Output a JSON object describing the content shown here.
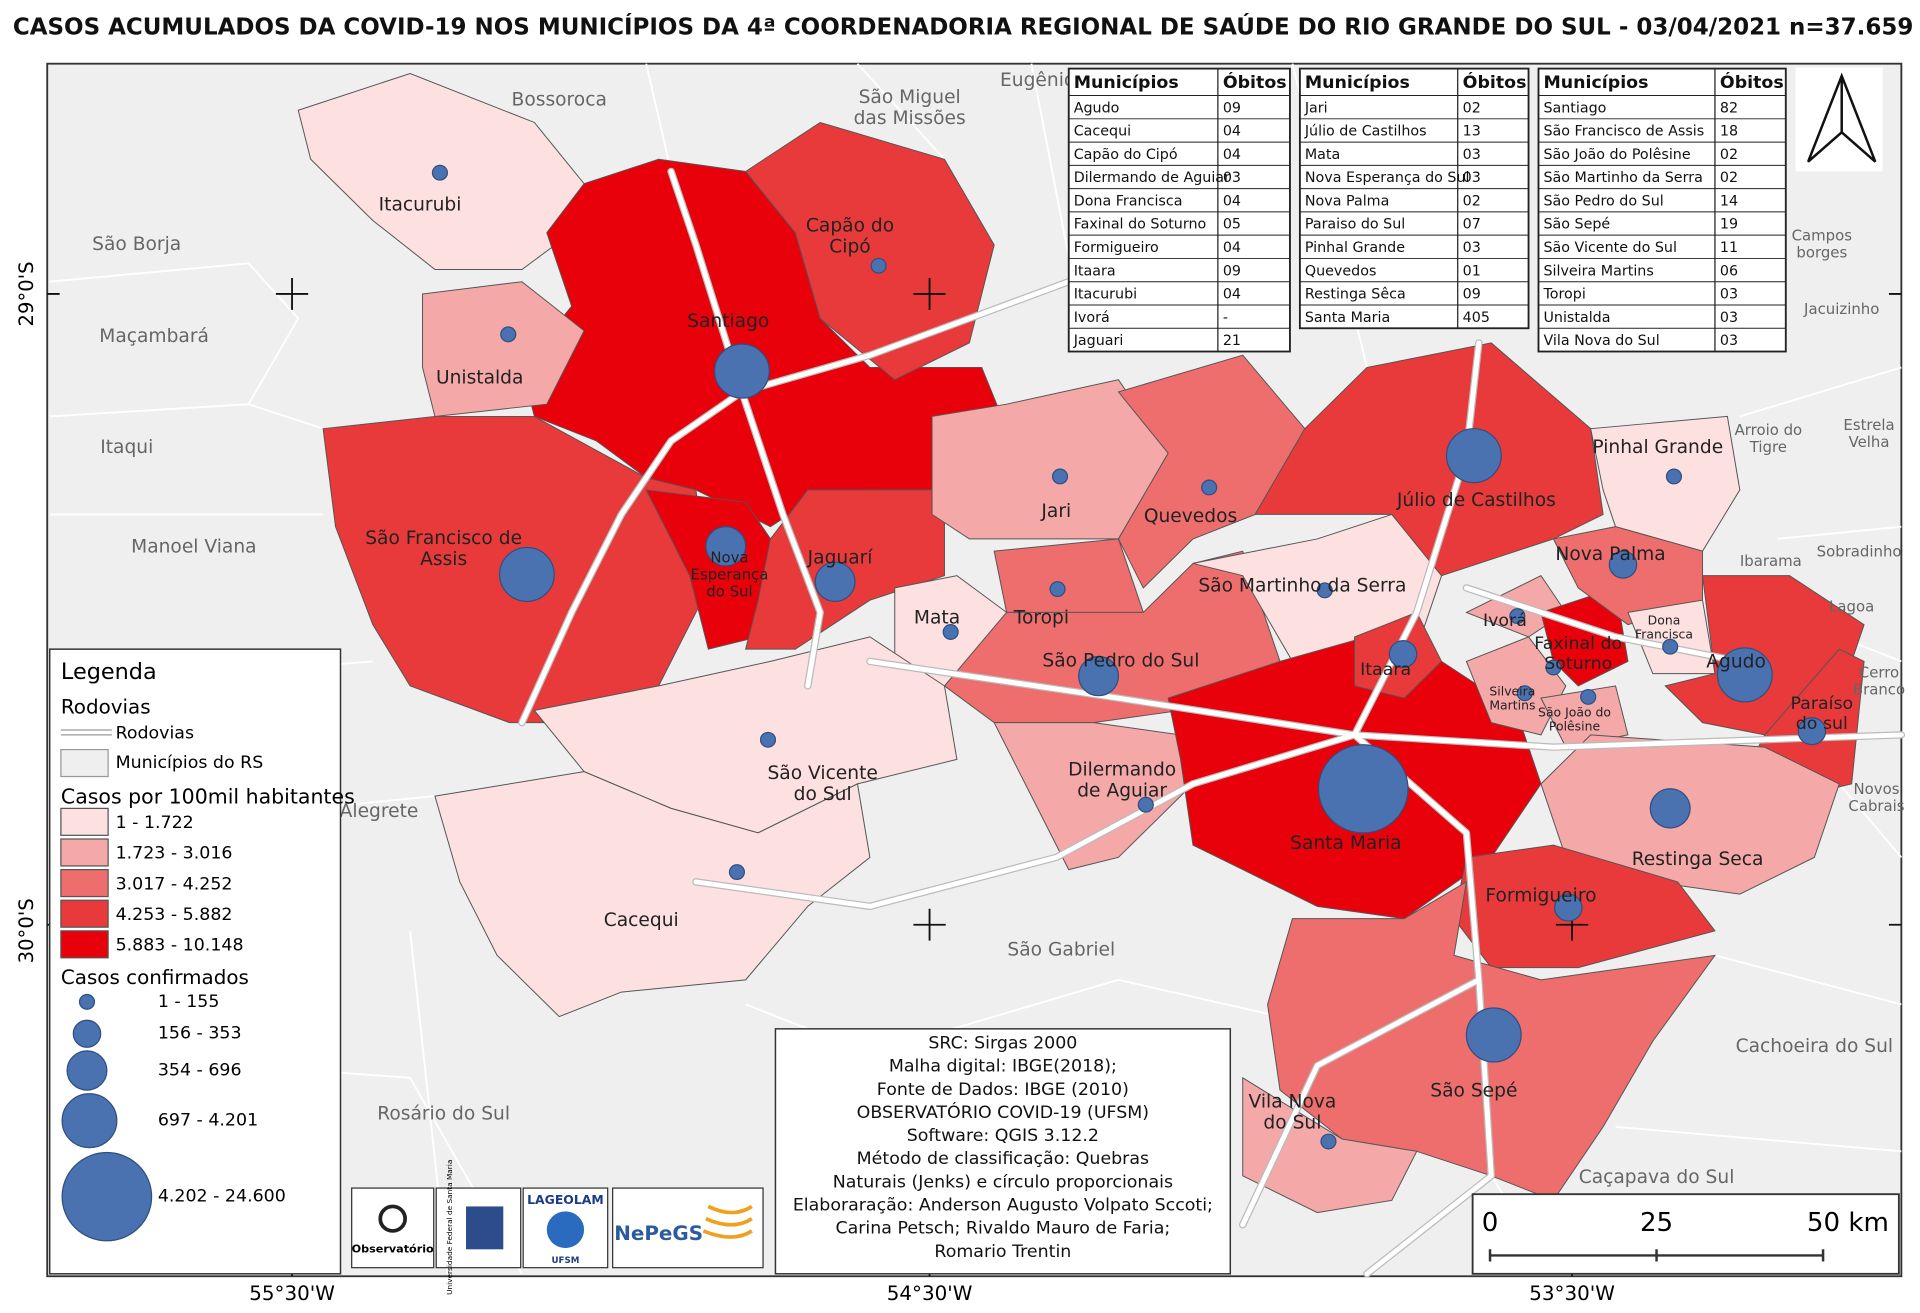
{
  "title": "CASOS ACUMULADOS DA COVID-19 NOS MUNICÍPIOS DA 4ª COORDENADORIA REGIONAL DE SAÚDE DO RIO GRANDE DO SUL - 03/04/2021 n=37.659",
  "tables": [
    {
      "headers": [
        "Municípios",
        "Óbitos"
      ],
      "rows": [
        [
          "Agudo",
          "09"
        ],
        [
          "Cacequi",
          "04"
        ],
        [
          "Capão do Cipó",
          "04"
        ],
        [
          "Dilermando de Aguiar",
          "03"
        ],
        [
          "Dona Francisca",
          "04"
        ],
        [
          "Faxinal do Soturno",
          "05"
        ],
        [
          "Formigueiro",
          "04"
        ],
        [
          "Itaara",
          "09"
        ],
        [
          "Itacurubi",
          "04"
        ],
        [
          "Ivorá",
          "-"
        ],
        [
          "Jaguari",
          "21"
        ]
      ]
    },
    {
      "headers": [
        "Municípios",
        "Óbitos"
      ],
      "rows": [
        [
          "Jari",
          "02"
        ],
        [
          "Júlio de Castilhos",
          "13"
        ],
        [
          "Mata",
          "03"
        ],
        [
          "Nova Esperança do Sul",
          "03"
        ],
        [
          "Nova Palma",
          "02"
        ],
        [
          "Paraiso do Sul",
          "07"
        ],
        [
          "Pinhal Grande",
          "03"
        ],
        [
          "Quevedos",
          "01"
        ],
        [
          "Restinga Sêca",
          "09"
        ],
        [
          "Santa Maria",
          "405"
        ]
      ]
    },
    {
      "headers": [
        "Municípios",
        "Óbitos"
      ],
      "rows": [
        [
          "Santiago",
          "82"
        ],
        [
          "São Francisco de Assis",
          "18"
        ],
        [
          "São João do Polêsine",
          "02"
        ],
        [
          "São Martinho da Serra",
          "02"
        ],
        [
          "São Pedro do Sul",
          "14"
        ],
        [
          "São Sepé",
          "19"
        ],
        [
          "São Vicente do Sul",
          "11"
        ],
        [
          "Silveira Martins",
          "06"
        ],
        [
          "Toropi",
          "03"
        ],
        [
          "Unistalda",
          "03"
        ],
        [
          "Vila Nova do Sul",
          "03"
        ]
      ]
    }
  ],
  "legend": {
    "title": "Legenda",
    "roads_heading": "Rodovias",
    "roads": "Rodovias",
    "municipalities": "Municípios do RS",
    "rate_heading": "Casos por 100mil habitantes",
    "rate_classes": [
      "1 - 1.722",
      "1.723 - 3.016",
      "3.017 - 4.252",
      "4.253 - 5.882",
      "5.883 - 10.148"
    ],
    "cases_heading": "Casos confirmados",
    "case_classes": [
      "1 - 155",
      "156 - 353",
      "354 - 696",
      "697 - 4.201",
      "4.202 - 24.600"
    ]
  },
  "municipalities": [
    [
      "Itacurubi"
    ],
    [
      "Capão do",
      "Cipó"
    ],
    [
      "Santiago"
    ],
    [
      "Unistalda"
    ],
    [
      "São Francisco de",
      "Assis"
    ],
    [
      "Nova",
      "Esperança",
      "do Sul"
    ],
    [
      "Jaguarí"
    ],
    [
      "Mata"
    ],
    [
      "Jari"
    ],
    [
      "Toropi"
    ],
    [
      "Quevedos"
    ],
    [
      "São Pedro do Sul"
    ],
    [
      "São Martinho da Serra"
    ],
    [
      "Júlio de Castilhos"
    ],
    [
      "Pinhal Grande"
    ],
    [
      "Nova Palma"
    ],
    [
      "Ivorá"
    ],
    [
      "Faxinal do",
      "Soturno"
    ],
    [
      "Dona",
      "Francisca"
    ],
    [
      "Agudo"
    ],
    [
      "Paraíso",
      "do sul"
    ],
    [
      "Itaara"
    ],
    [
      "Silveira",
      "Martins"
    ],
    [
      "São João do",
      "Polêsine"
    ],
    [
      "São Vicente",
      "do Sul"
    ],
    [
      "Dilermando",
      "de Aguiar"
    ],
    [
      "Santa Maria"
    ],
    [
      "Restinga Seca"
    ],
    [
      "Cacequi"
    ],
    [
      "Formigueiro"
    ],
    [
      "São Sepé"
    ],
    [
      "Vila Nova",
      "do Sul"
    ]
  ],
  "neighbors": [
    [
      "Bossoroca"
    ],
    [
      "São Miguel",
      "das Missões"
    ],
    [
      "Eugênio"
    ],
    [
      "São Borja"
    ],
    [
      "Maçambará"
    ],
    [
      "Itaqui"
    ],
    [
      "Manoel Viana"
    ],
    [
      "Alegrete"
    ],
    [
      "Rosário do Sul"
    ],
    [
      "São Gabriel"
    ],
    [
      "Cachoeira do Sul"
    ],
    [
      "Caçapava do Sul"
    ],
    [
      "Campos",
      "borges"
    ],
    [
      "Jacuizinho"
    ],
    [
      "Arroio do",
      "Tigre"
    ],
    [
      "Estrela",
      "Velha"
    ],
    [
      "Ibarama"
    ],
    [
      "Sobradinho"
    ],
    [
      "Lagoa"
    ],
    [
      "Cerro",
      "Branco"
    ],
    [
      "Novos",
      "Cabrais"
    ]
  ],
  "credits": [
    "SRC: Sirgas 2000",
    "Malha digital: IBGE(2018);",
    "Fonte de Dados: IBGE (2010)",
    "OBSERVATÓRIO COVID-19 (UFSM)",
    "Software: QGIS 3.12.2",
    "Método de classificação: Quebras",
    "Naturais (Jenks) e círculo proporcionais",
    "Elaboraração: Anderson Augusto Volpato Sccoti;",
    "Carina Petsch; Rivaldo Mauro de Faria;",
    "Romario Trentin"
  ],
  "scale": [
    "0",
    "25",
    "50 km"
  ],
  "latitudes": [
    "29°0'S",
    "30°0'S"
  ],
  "longitudes": [
    "55°30'W",
    "54°30'W",
    "53°30'W"
  ],
  "logos": [
    "Observatório",
    "Universidade Federal de Santa Maria",
    "LAGEOLAM",
    "UFSM",
    "NePeGS"
  ]
}
